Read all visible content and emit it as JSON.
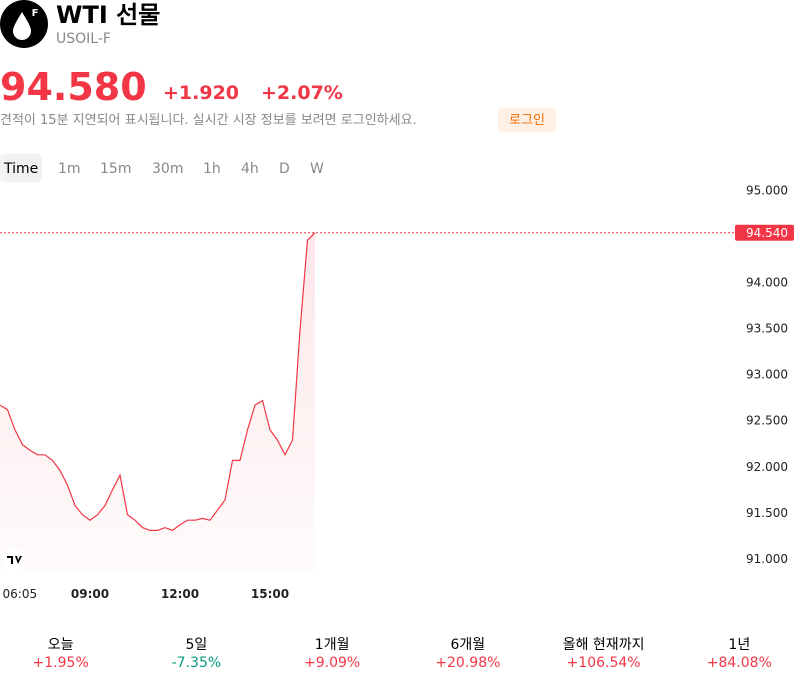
{
  "header": {
    "icon_letter": "F",
    "title": "WTI 선물",
    "symbol": "USOIL-F"
  },
  "quote": {
    "price": "94.580",
    "change": "+1.920",
    "change_pct": "+2.07%",
    "color": "#f23645"
  },
  "notice": {
    "text": "견적이 15분 지연되어 표시됩니다. 실시간 시장 정보를 보려면 로그인하세요.",
    "button": "로그인"
  },
  "intervals": [
    "Time",
    "1m",
    "15m",
    "30m",
    "1h",
    "4h",
    "D",
    "W"
  ],
  "chart_data": {
    "type": "line",
    "color": "#f23645",
    "x": [
      "06:00",
      "06:15",
      "06:30",
      "06:45",
      "07:00",
      "07:15",
      "07:30",
      "07:45",
      "08:00",
      "08:15",
      "08:30",
      "08:45",
      "09:00",
      "09:15",
      "09:30",
      "09:45",
      "10:00",
      "10:15",
      "10:30",
      "10:45",
      "11:00",
      "11:15",
      "11:30",
      "11:45",
      "12:00",
      "12:15",
      "12:30",
      "12:45",
      "13:00",
      "13:15",
      "13:30",
      "13:45",
      "14:00",
      "14:15",
      "14:30",
      "14:45",
      "15:00",
      "15:15",
      "15:30",
      "15:45",
      "16:00",
      "16:15",
      "16:30"
    ],
    "values": [
      92.67,
      92.62,
      92.4,
      92.24,
      92.18,
      92.13,
      92.13,
      92.07,
      91.96,
      91.8,
      91.58,
      91.48,
      91.42,
      91.48,
      91.58,
      91.75,
      91.91,
      91.48,
      91.42,
      91.34,
      91.31,
      91.31,
      91.34,
      91.31,
      91.37,
      91.42,
      91.42,
      91.44,
      91.42,
      91.53,
      91.64,
      92.07,
      92.07,
      92.4,
      92.67,
      92.72,
      92.4,
      92.29,
      92.13,
      92.29,
      93.48,
      94.46,
      94.54
    ],
    "xticks": [
      "06:05",
      "09:00",
      "12:00",
      "15:00"
    ],
    "ylim": [
      90.88,
      95.08
    ],
    "yticks": [
      {
        "value": 91,
        "label": "91.000"
      },
      {
        "value": 91.5,
        "label": "91.500"
      },
      {
        "value": 92,
        "label": "92.000"
      },
      {
        "value": 92.5,
        "label": "92.500"
      },
      {
        "value": 93,
        "label": "93.000"
      },
      {
        "value": 93.5,
        "label": "93.500"
      },
      {
        "value": 94,
        "label": "94.000"
      },
      {
        "value": 94.5,
        "label": "94.500"
      },
      {
        "value": 95,
        "label": "95.000"
      }
    ],
    "price_line": {
      "value": 94.54,
      "label": "94.540"
    }
  },
  "performance": [
    {
      "label": "오늘",
      "value": "+1.95%",
      "color": "#f23645"
    },
    {
      "label": "5일",
      "value": "-7.35%",
      "color": "#089981"
    },
    {
      "label": "1개월",
      "value": "+9.09%",
      "color": "#f23645"
    },
    {
      "label": "6개월",
      "value": "+20.98%",
      "color": "#f23645"
    },
    {
      "label": "올해 현재까지",
      "value": "+106.54%",
      "color": "#f23645"
    },
    {
      "label": "1년",
      "value": "+84.08%",
      "color": "#f23645"
    }
  ]
}
